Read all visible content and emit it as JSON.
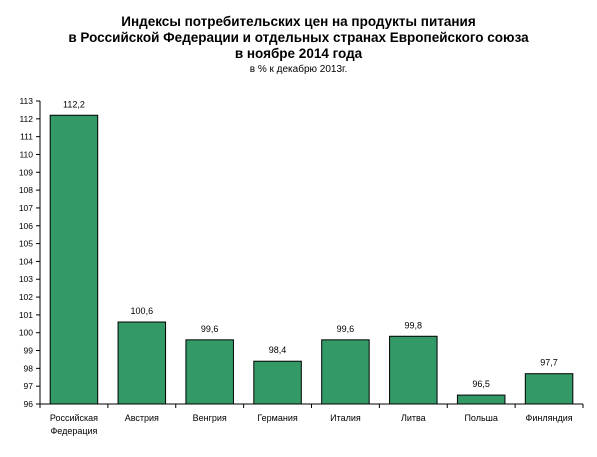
{
  "chart_data": {
    "type": "bar",
    "title_lines": [
      "Индексы потребительских цен на продукты питания",
      "в Российской Федерации и отдельных странах Европейского союза",
      "в ноябре 2014 года"
    ],
    "subtitle": "в % к декабрю 2013г.",
    "categories": [
      [
        "Российская",
        "Федерация"
      ],
      [
        "Австрия"
      ],
      [
        "Венгрия"
      ],
      [
        "Германия"
      ],
      [
        "Италия"
      ],
      [
        "Литва"
      ],
      [
        "Польша"
      ],
      [
        "Финляндия"
      ]
    ],
    "values": [
      112.2,
      100.6,
      99.6,
      98.4,
      99.6,
      99.8,
      96.5,
      97.7
    ],
    "value_labels": [
      "112,2",
      "100,6",
      "99,6",
      "98,4",
      "99,6",
      "99,8",
      "96,5",
      "97,7"
    ],
    "ylim": [
      96,
      113
    ],
    "yticks": [
      96,
      97,
      98,
      99,
      100,
      101,
      102,
      103,
      104,
      105,
      106,
      107,
      108,
      109,
      110,
      111,
      112,
      113
    ],
    "bar_color": "#339966",
    "grid": false,
    "legend": "none"
  }
}
